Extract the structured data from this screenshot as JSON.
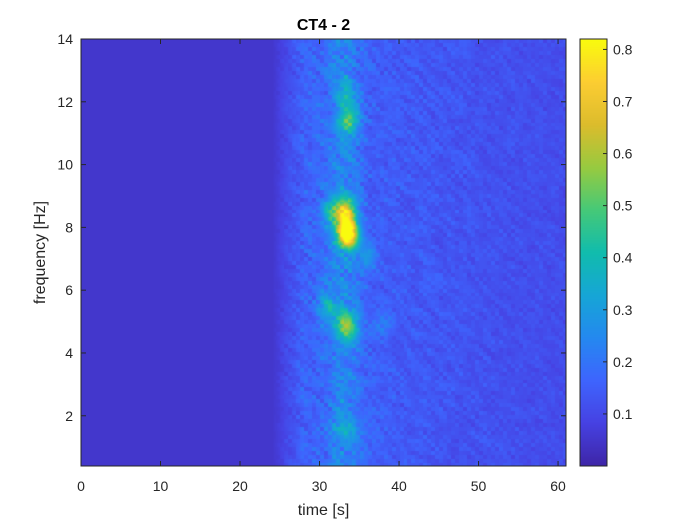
{
  "chart_data": {
    "type": "heatmap",
    "title": "CT4 - 2",
    "xlabel": "time [s]",
    "ylabel": "frequency [Hz]",
    "xlim": [
      0,
      61
    ],
    "ylim": [
      0.4,
      14
    ],
    "xticks": [
      0,
      10,
      20,
      30,
      40,
      50,
      60
    ],
    "yticks": [
      2,
      4,
      6,
      8,
      10,
      12,
      14
    ],
    "colormap": "parula",
    "colorbar": {
      "range": [
        0,
        0.82
      ],
      "ticks": [
        0.1,
        0.2,
        0.3,
        0.4,
        0.5,
        0.6,
        0.7,
        0.8
      ],
      "tick_labels": [
        "0.1",
        "0.2",
        "0.3",
        "0.4",
        "0.5",
        "0.6",
        "0.7",
        "0.8"
      ]
    },
    "baseline_value": 0.05,
    "activity_onset_s": 25,
    "hotspots": [
      {
        "t": 33.5,
        "f": 7.8,
        "value": 0.82
      },
      {
        "t": 33.2,
        "f": 8.5,
        "value": 0.55
      },
      {
        "t": 33.4,
        "f": 4.9,
        "value": 0.45
      },
      {
        "t": 33.6,
        "f": 11.4,
        "value": 0.35
      },
      {
        "t": 31.5,
        "f": 8.5,
        "value": 0.3
      },
      {
        "t": 31.0,
        "f": 5.5,
        "value": 0.28
      },
      {
        "t": 33.0,
        "f": 1.6,
        "value": 0.22
      },
      {
        "t": 33.3,
        "f": 12.3,
        "value": 0.25
      },
      {
        "t": 36.0,
        "f": 7.0,
        "value": 0.2
      },
      {
        "t": 38.0,
        "f": 5.0,
        "value": 0.18
      }
    ]
  }
}
